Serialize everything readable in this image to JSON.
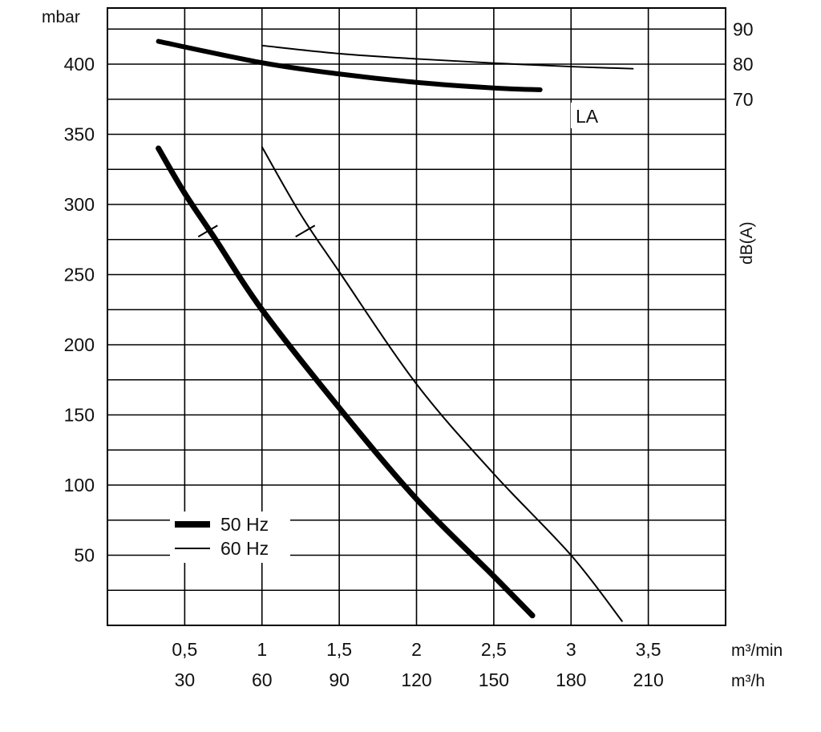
{
  "chart_data": {
    "type": "line",
    "y_unit": "mbar",
    "ylim": [
      0,
      440
    ],
    "y_ticks": [
      "50",
      "100",
      "150",
      "200",
      "250",
      "300",
      "350",
      "400"
    ],
    "x_ticks_top": [
      "0,5",
      "1",
      "1,5",
      "2",
      "2,5",
      "3",
      "3,5"
    ],
    "x_ticks_bottom": [
      "30",
      "60",
      "90",
      "120",
      "150",
      "180",
      "210"
    ],
    "x_unit_top": "m³/min",
    "x_unit_bottom": "m³/h",
    "xlim": [
      0,
      4.0
    ],
    "y2_label": "dB(A)",
    "y2_ticks": [
      "70",
      "80",
      "90"
    ],
    "y2_values": [
      70,
      80,
      90
    ],
    "noise_label": "LA",
    "grid": true,
    "legend": [
      {
        "label": "50 Hz",
        "style": "thick"
      },
      {
        "label": "60 Hz",
        "style": "thin"
      }
    ],
    "series": [
      {
        "name": "50 Hz",
        "kind": "pressure",
        "points": [
          [
            0.33,
            340
          ],
          [
            0.5,
            308
          ],
          [
            0.7,
            275
          ],
          [
            1.0,
            225
          ],
          [
            1.5,
            155
          ],
          [
            2.0,
            90
          ],
          [
            2.5,
            35
          ],
          [
            2.75,
            7
          ]
        ]
      },
      {
        "name": "60 Hz",
        "kind": "pressure",
        "points": [
          [
            1.0,
            341
          ],
          [
            1.25,
            293
          ],
          [
            1.5,
            252
          ],
          [
            2.0,
            172
          ],
          [
            2.5,
            108
          ],
          [
            3.0,
            50
          ],
          [
            3.33,
            3
          ]
        ]
      },
      {
        "name": "50 Hz",
        "kind": "noise_dBA",
        "points": [
          [
            0.33,
            86.5
          ],
          [
            1.0,
            80.4
          ],
          [
            1.5,
            77.2
          ],
          [
            2.0,
            74.8
          ],
          [
            2.5,
            73.2
          ],
          [
            2.8,
            72.7
          ]
        ]
      },
      {
        "name": "60 Hz",
        "kind": "noise_dBA",
        "points": [
          [
            1.0,
            85.3
          ],
          [
            1.5,
            83.0
          ],
          [
            2.0,
            81.5
          ],
          [
            2.5,
            80.3
          ],
          [
            3.0,
            79.3
          ],
          [
            3.4,
            78.7
          ]
        ]
      }
    ],
    "markers": [
      {
        "series": "50 Hz",
        "x": 0.65,
        "y": 281
      },
      {
        "series": "60 Hz",
        "x": 1.28,
        "y": 281
      }
    ]
  }
}
